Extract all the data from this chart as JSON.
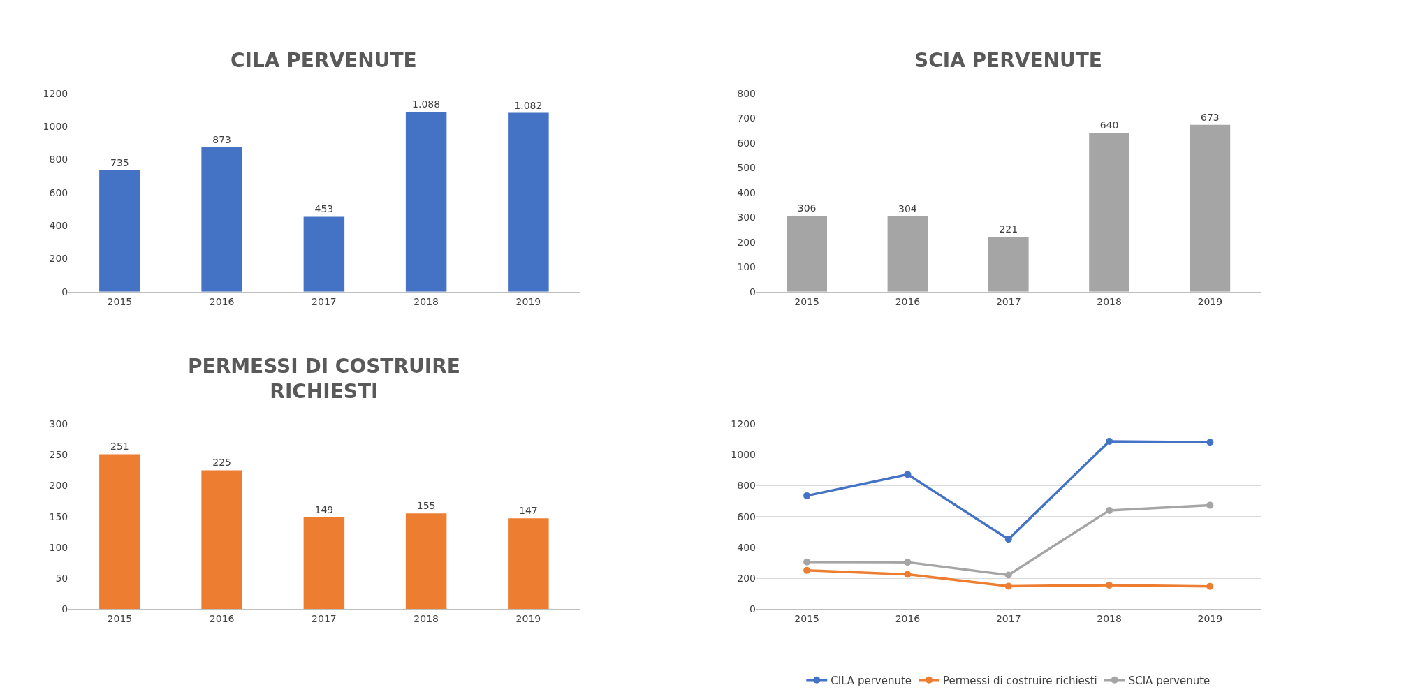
{
  "chart_data": [
    {
      "type": "bar",
      "title": "CILA PERVENUTE",
      "categories": [
        "2015",
        "2016",
        "2017",
        "2018",
        "2019"
      ],
      "values": [
        735,
        873,
        453,
        1088,
        1082
      ],
      "value_labels": [
        "735",
        "873",
        "453",
        "1.088",
        "1.082"
      ],
      "color": "#4472c4",
      "ylim": [
        0,
        1200
      ],
      "yticks": [
        0,
        200,
        400,
        600,
        800,
        1000,
        1200
      ]
    },
    {
      "type": "bar",
      "title": "SCIA PERVENUTE",
      "categories": [
        "2015",
        "2016",
        "2017",
        "2018",
        "2019"
      ],
      "values": [
        306,
        304,
        221,
        640,
        673
      ],
      "data_labels": true,
      "color": "#a5a5a5",
      "ylim": [
        0,
        800
      ],
      "yticks": [
        0,
        100,
        200,
        300,
        400,
        500,
        600,
        700,
        800
      ]
    },
    {
      "type": "bar",
      "title": "PERMESSI DI COSTRUIRE RICHIESTI",
      "categories": [
        "2015",
        "2016",
        "2017",
        "2018",
        "2019"
      ],
      "values": [
        251,
        225,
        149,
        155,
        147
      ],
      "data_labels": true,
      "color": "#ed7d31",
      "ylim": [
        0,
        300
      ],
      "yticks": [
        0,
        50,
        100,
        150,
        200,
        250,
        300
      ]
    },
    {
      "type": "line",
      "categories": [
        "2015",
        "2016",
        "2017",
        "2018",
        "2019"
      ],
      "ylim": [
        0,
        1200
      ],
      "yticks": [
        0,
        200,
        400,
        600,
        800,
        1000,
        1200
      ],
      "grid": "y",
      "legend": "bottom",
      "marker": "circle",
      "series": [
        {
          "name": "CILA pervenute",
          "color": "#4472c4",
          "values": [
            735,
            873,
            453,
            1088,
            1082
          ]
        },
        {
          "name": "Permessi di costruire richiesti",
          "color": "#ed7d31",
          "values": [
            251,
            225,
            149,
            155,
            147
          ]
        },
        {
          "name": "SCIA pervenute",
          "color": "#a5a5a5",
          "values": [
            306,
            304,
            221,
            640,
            673
          ]
        }
      ]
    }
  ]
}
